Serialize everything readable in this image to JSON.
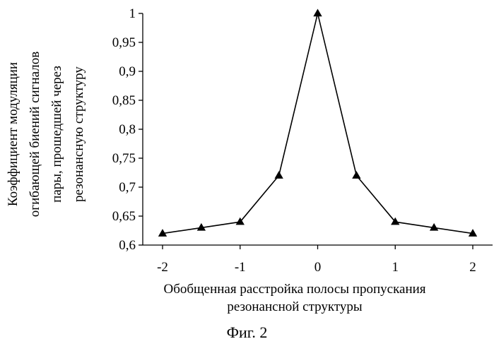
{
  "figure_caption": "Фиг. 2",
  "chart_data": {
    "type": "line",
    "title": "",
    "xlabel": [
      "Обобщенная расстройка полосы пропускания",
      "резонансной структуры"
    ],
    "ylabel": [
      "Коэффициент модуляции",
      "огибающей биений сигналов",
      "пары, прошедшей через",
      "резонансную структуру"
    ],
    "xlim": [
      -2,
      2
    ],
    "ylim": [
      0.6,
      1
    ],
    "x_ticks": [
      {
        "value": -2,
        "label": "-2"
      },
      {
        "value": -1,
        "label": "-1"
      },
      {
        "value": 0,
        "label": "0"
      },
      {
        "value": 1,
        "label": "1"
      },
      {
        "value": 2,
        "label": "2"
      }
    ],
    "y_ticks": [
      {
        "value": 0.6,
        "label": "0,6"
      },
      {
        "value": 0.65,
        "label": "0,65"
      },
      {
        "value": 0.7,
        "label": "0,7"
      },
      {
        "value": 0.75,
        "label": "0,75"
      },
      {
        "value": 0.8,
        "label": "0,8"
      },
      {
        "value": 0.85,
        "label": "0,85"
      },
      {
        "value": 0.9,
        "label": "0,9"
      },
      {
        "value": 0.95,
        "label": "0,95"
      },
      {
        "value": 1,
        "label": "1"
      }
    ],
    "grid": false,
    "legend": "none",
    "marker": "triangle",
    "series": [
      {
        "x": [
          -2,
          -1.5,
          -1,
          -0.5,
          0,
          0.5,
          1,
          1.5,
          2
        ],
        "y": [
          0.62,
          0.63,
          0.64,
          0.72,
          1.0,
          0.72,
          0.64,
          0.63,
          0.62
        ]
      }
    ],
    "colors": {
      "line": "#000000",
      "marker": "#000000"
    }
  }
}
